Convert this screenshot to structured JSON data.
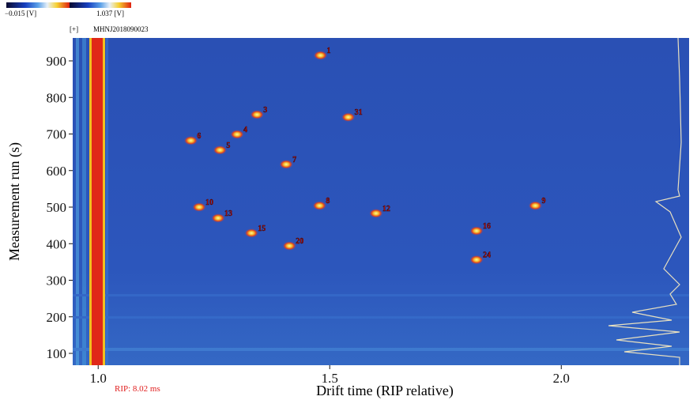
{
  "chart_data": {
    "type": "scatter",
    "colorbar_min_label": "−0.015 [V]",
    "colorbar_max_label": "1.037 [V]",
    "expand_label": "[+]",
    "sample_name": "MHNJ2018090023",
    "rip_label": "RIP: 8.02 ms",
    "x_label": "Drift time (RIP relative)",
    "y_label": "Measurement run (s)",
    "xlim": [
      0.945,
      2.276
    ],
    "ylim": [
      67.6,
      962.7
    ],
    "xticks": [
      {
        "value": 1,
        "label": "1.0"
      },
      {
        "value": 1.5,
        "label": "1.5"
      },
      {
        "value": 2,
        "label": "2.0"
      }
    ],
    "yticks": [
      100,
      200,
      300,
      400,
      500,
      600,
      700,
      800,
      900
    ],
    "points": {
      "x": [
        1.48,
        1.343,
        1.3,
        1.2,
        1.263,
        1.406,
        1.478,
        1.944,
        1.54,
        1.218,
        1.259,
        1.331,
        1.6,
        1.817,
        1.817,
        1.413
      ],
      "y": [
        915,
        753,
        699,
        682,
        656,
        617,
        504,
        504,
        746,
        500,
        470,
        429,
        483,
        435,
        356,
        394
      ],
      "labels": [
        "1",
        "3",
        "4",
        "6",
        "5",
        "7",
        "8",
        "9",
        "31",
        "10",
        "13",
        "15",
        "12",
        "16",
        "24",
        "20"
      ]
    }
  }
}
